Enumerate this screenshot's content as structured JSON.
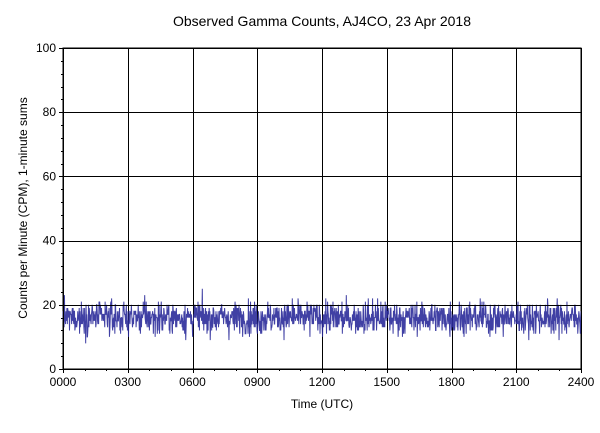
{
  "chart_data": {
    "type": "line",
    "title": "Observed Gamma Counts, AJ4CO, 23 Apr 2018",
    "xlabel": "Time (UTC)",
    "ylabel": "Counts per Minute (CPM), 1-minute sums",
    "x_ticks": [
      {
        "minutes": 0,
        "label": "0000"
      },
      {
        "minutes": 180,
        "label": "0300"
      },
      {
        "minutes": 360,
        "label": "0600"
      },
      {
        "minutes": 540,
        "label": "0900"
      },
      {
        "minutes": 720,
        "label": "1200"
      },
      {
        "minutes": 900,
        "label": "1500"
      },
      {
        "minutes": 1080,
        "label": "1800"
      },
      {
        "minutes": 1260,
        "label": "2100"
      },
      {
        "minutes": 1440,
        "label": "2400"
      }
    ],
    "y_ticks": [
      0,
      20,
      40,
      60,
      80,
      100
    ],
    "xlim": [
      0,
      1440
    ],
    "ylim": [
      0,
      100
    ],
    "grid": true,
    "colors": {
      "series": "#2b2b9a",
      "grid": "#000000",
      "reference_line": "#000000"
    },
    "reference_line": {
      "y": 20
    },
    "series": [
      {
        "values_per_minute_count": 1440,
        "value_range": [
          5,
          30
        ],
        "mean_approx": 16
      }
    ]
  }
}
